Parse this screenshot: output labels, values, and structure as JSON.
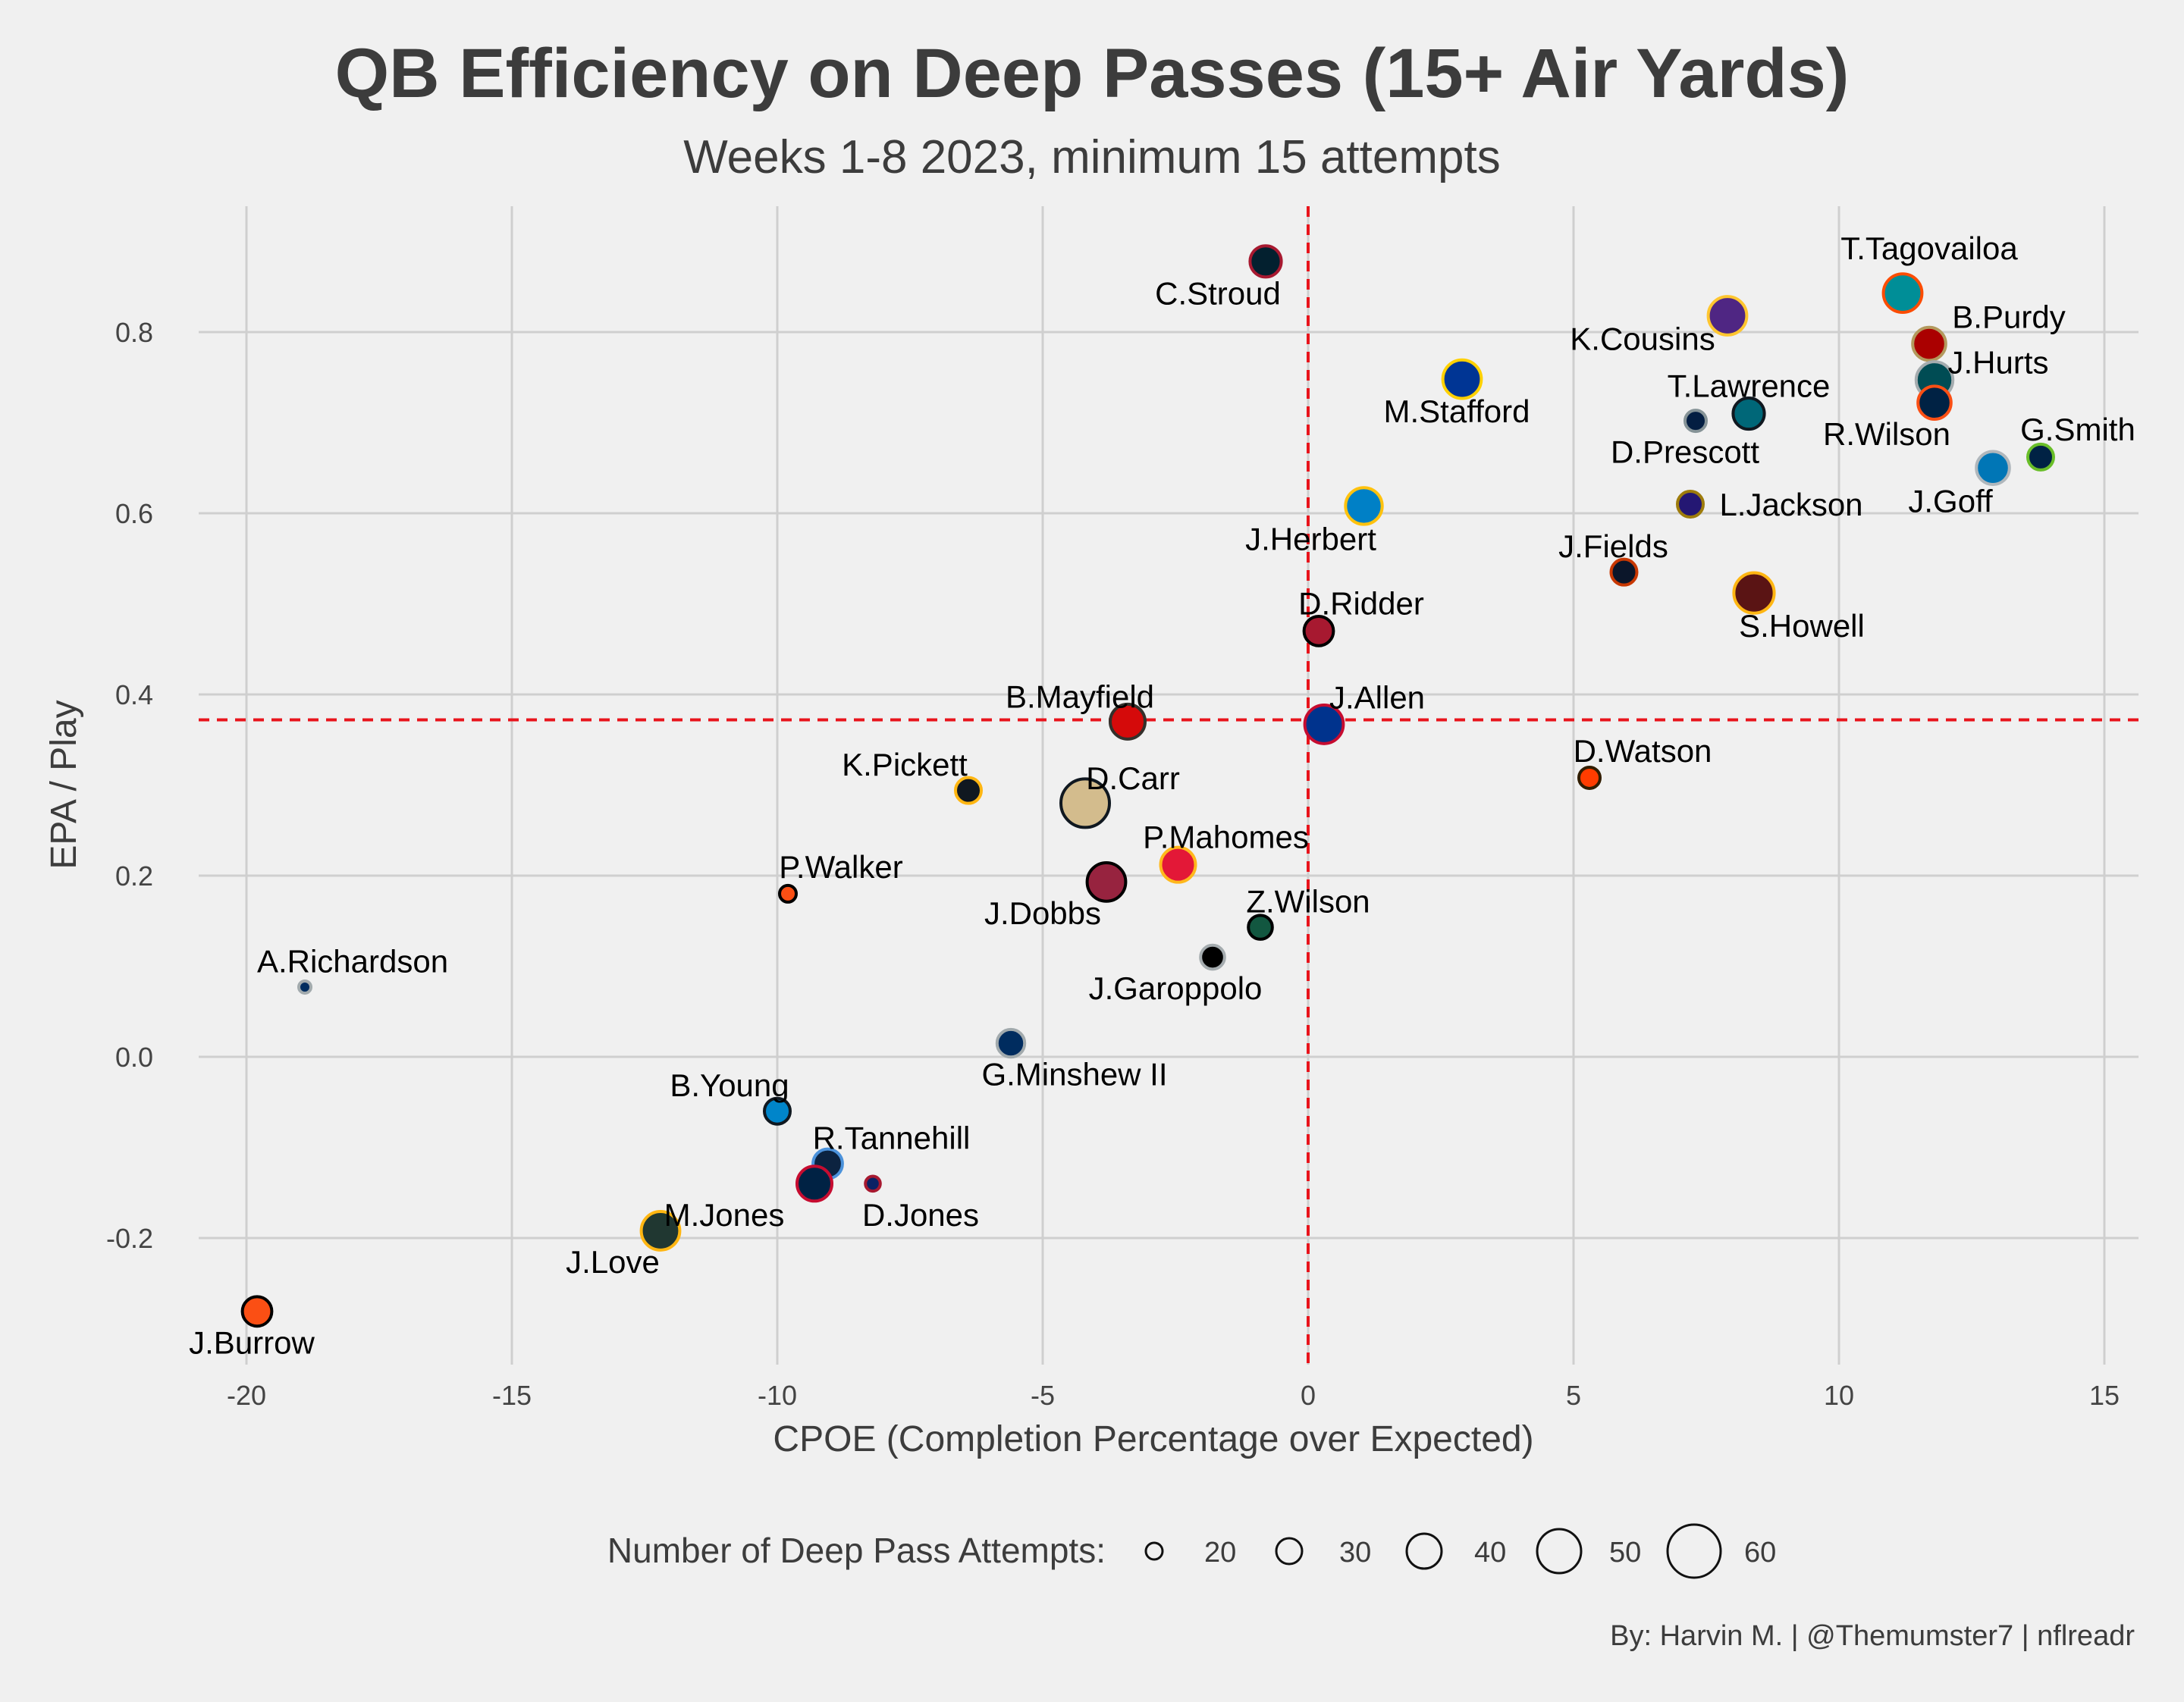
{
  "chart_data": {
    "type": "scatter",
    "title": "QB Efficiency on Deep Passes (15+ Air Yards)",
    "subtitle": "Weeks 1-8 2023, minimum 15 attempts",
    "xlabel": "CPOE (Completion Percentage over Expected)",
    "ylabel": "EPA / Play",
    "caption": "By: Harvin M. | @Themumster7 | nflreadr",
    "xlim": [
      -21.5,
      15.5
    ],
    "ylim": [
      -0.34,
      0.94
    ],
    "xticks": [
      -20,
      -15,
      -10,
      -5,
      0,
      5,
      10,
      15
    ],
    "xtick_labels": [
      "-20",
      "-15",
      "-10",
      "-5",
      "0",
      "5",
      "10",
      "15"
    ],
    "yticks": [
      -0.2,
      0.0,
      0.2,
      0.4,
      0.6,
      0.8
    ],
    "ytick_labels": [
      "-0.2",
      "0.0",
      "0.2",
      "0.4",
      "0.6",
      "0.8"
    ],
    "grid": true,
    "reference_lines": {
      "x": 0.0,
      "y": 0.372,
      "color": "#e8141c",
      "style": "dashed"
    },
    "legend": {
      "title": "Number of Deep Pass Attempts:",
      "position": "bottom",
      "sizes": [
        20,
        30,
        40,
        50,
        60
      ],
      "labels": [
        "20",
        "30",
        "40",
        "50",
        "60"
      ]
    },
    "points": [
      {
        "label": "C.Stroud",
        "x": -0.8,
        "y": 0.878,
        "attempts": 36,
        "fill": "#03202f",
        "stroke": "#a71930",
        "label_dx": -0.9,
        "label_dy": -0.035
      },
      {
        "label": "T.Tagovailoa",
        "x": 11.2,
        "y": 0.843,
        "attempts": 44,
        "fill": "#008e97",
        "stroke": "#fc4c02",
        "label_dx": 0.5,
        "label_dy": 0.05
      },
      {
        "label": "K.Cousins",
        "x": 7.9,
        "y": 0.818,
        "attempts": 44,
        "fill": "#4f2683",
        "stroke": "#ffc62f",
        "label_dx": -1.6,
        "label_dy": -0.025
      },
      {
        "label": "B.Purdy",
        "x": 11.7,
        "y": 0.787,
        "attempts": 38,
        "fill": "#aa0000",
        "stroke": "#b3995d",
        "label_dx": 1.5,
        "label_dy": 0.03
      },
      {
        "label": "M.Stafford",
        "x": 2.9,
        "y": 0.748,
        "attempts": 44,
        "fill": "#003594",
        "stroke": "#ffd100",
        "label_dx": -0.1,
        "label_dy": -0.035
      },
      {
        "label": "J.Hurts",
        "x": 11.8,
        "y": 0.747,
        "attempts": 42,
        "fill": "#004c54",
        "stroke": "#a5acaf",
        "label_dx": 1.2,
        "label_dy": 0.02
      },
      {
        "label": "R.Wilson",
        "x": 11.8,
        "y": 0.722,
        "attempts": 38,
        "fill": "#002244",
        "stroke": "#fb4f14",
        "label_dx": -0.9,
        "label_dy": -0.034
      },
      {
        "label": "T.Lawrence",
        "x": 8.3,
        "y": 0.71,
        "attempts": 36,
        "fill": "#006778",
        "stroke": "#101820",
        "label_dx": 0.0,
        "label_dy": 0.031
      },
      {
        "label": "D.Prescott",
        "x": 7.3,
        "y": 0.702,
        "attempts": 25,
        "fill": "#041e42",
        "stroke": "#869397",
        "label_dx": -0.2,
        "label_dy": -0.034
      },
      {
        "label": "G.Smith",
        "x": 13.8,
        "y": 0.662,
        "attempts": 30,
        "fill": "#002244",
        "stroke": "#69be28",
        "label_dx": 0.7,
        "label_dy": 0.031
      },
      {
        "label": "J.Goff",
        "x": 12.9,
        "y": 0.65,
        "attempts": 38,
        "fill": "#0076b6",
        "stroke": "#b0b7bc",
        "label_dx": -0.8,
        "label_dy": -0.036
      },
      {
        "label": "J.Herbert",
        "x": 1.05,
        "y": 0.608,
        "attempts": 42,
        "fill": "#0080c6",
        "stroke": "#ffc20e",
        "label_dx": -1.0,
        "label_dy": -0.036
      },
      {
        "label": "L.Jackson",
        "x": 7.2,
        "y": 0.61,
        "attempts": 30,
        "fill": "#241773",
        "stroke": "#9e7c0c",
        "label_dx": 1.9,
        "label_dy": 0.0
      },
      {
        "label": "J.Fields",
        "x": 5.95,
        "y": 0.535,
        "attempts": 30,
        "fill": "#0b162a",
        "stroke": "#c83803",
        "label_dx": -0.2,
        "label_dy": 0.029
      },
      {
        "label": "S.Howell",
        "x": 8.4,
        "y": 0.512,
        "attempts": 46,
        "fill": "#5a1414",
        "stroke": "#ffb612",
        "label_dx": 0.9,
        "label_dy": -0.036
      },
      {
        "label": "D.Ridder",
        "x": 0.2,
        "y": 0.47,
        "attempts": 34,
        "fill": "#a71930",
        "stroke": "#000000",
        "label_dx": 0.8,
        "label_dy": 0.031
      },
      {
        "label": "B.Mayfield",
        "x": -3.4,
        "y": 0.37,
        "attempts": 40,
        "fill": "#d50a0a",
        "stroke": "#34302b",
        "label_dx": -0.9,
        "label_dy": 0.028
      },
      {
        "label": "J.Allen",
        "x": 0.3,
        "y": 0.367,
        "attempts": 44,
        "fill": "#00338d",
        "stroke": "#c60c30",
        "label_dx": 1.0,
        "label_dy": 0.03
      },
      {
        "label": "D.Watson",
        "x": 5.3,
        "y": 0.308,
        "attempts": 25,
        "fill": "#ff3c00",
        "stroke": "#311d00",
        "label_dx": 1.0,
        "label_dy": 0.03
      },
      {
        "label": "K.Pickett",
        "x": -6.4,
        "y": 0.294,
        "attempts": 30,
        "fill": "#101820",
        "stroke": "#ffb612",
        "label_dx": -1.2,
        "label_dy": 0.029
      },
      {
        "label": "D.Carr",
        "x": -4.2,
        "y": 0.28,
        "attempts": 55,
        "fill": "#d3bc8d",
        "stroke": "#101820",
        "label_dx": 0.9,
        "label_dy": 0.028
      },
      {
        "label": "P.Mahomes",
        "x": -2.45,
        "y": 0.212,
        "attempts": 40,
        "fill": "#e31837",
        "stroke": "#ffb81c",
        "label_dx": 0.9,
        "label_dy": 0.031
      },
      {
        "label": "J.Dobbs",
        "x": -3.8,
        "y": 0.193,
        "attempts": 44,
        "fill": "#97233f",
        "stroke": "#000000",
        "label_dx": -1.2,
        "label_dy": -0.034
      },
      {
        "label": "P.Walker",
        "x": -9.8,
        "y": 0.18,
        "attempts": 20,
        "fill": "#fb4f14",
        "stroke": "#000000",
        "label_dx": 1.0,
        "label_dy": 0.03
      },
      {
        "label": "Z.Wilson",
        "x": -0.9,
        "y": 0.143,
        "attempts": 28,
        "fill": "#125740",
        "stroke": "#000000",
        "label_dx": 0.9,
        "label_dy": 0.029
      },
      {
        "label": "J.Garoppolo",
        "x": -1.8,
        "y": 0.11,
        "attempts": 28,
        "fill": "#000000",
        "stroke": "#a5acaf",
        "label_dx": -0.7,
        "label_dy": -0.034
      },
      {
        "label": "A.Richardson",
        "x": -18.9,
        "y": 0.077,
        "attempts": 15,
        "fill": "#002c5f",
        "stroke": "#a2aaad",
        "label_dx": 0.9,
        "label_dy": 0.029
      },
      {
        "label": "G.Minshew II",
        "x": -5.6,
        "y": 0.015,
        "attempts": 32,
        "fill": "#002c5f",
        "stroke": "#a2aaad",
        "label_dx": 1.2,
        "label_dy": -0.034
      },
      {
        "label": "B.Young",
        "x": -10.0,
        "y": -0.06,
        "attempts": 30,
        "fill": "#0085ca",
        "stroke": "#101820",
        "label_dx": -0.9,
        "label_dy": 0.029
      },
      {
        "label": "R.Tannehill",
        "x": -9.05,
        "y": -0.118,
        "attempts": 34,
        "fill": "#0c2340",
        "stroke": "#4b92db",
        "label_dx": 1.2,
        "label_dy": 0.029
      },
      {
        "label": "M.Jones",
        "x": -9.3,
        "y": -0.14,
        "attempts": 40,
        "fill": "#002244",
        "stroke": "#c60c30",
        "label_dx": -1.7,
        "label_dy": -0.034
      },
      {
        "label": "D.Jones",
        "x": -8.2,
        "y": -0.14,
        "attempts": 18,
        "fill": "#0b2265",
        "stroke": "#a71930",
        "label_dx": 0.9,
        "label_dy": -0.034
      },
      {
        "label": "J.Love",
        "x": -12.2,
        "y": -0.192,
        "attempts": 44,
        "fill": "#203731",
        "stroke": "#ffb612",
        "label_dx": -0.9,
        "label_dy": -0.034
      },
      {
        "label": "J.Burrow",
        "x": -19.8,
        "y": -0.281,
        "attempts": 34,
        "fill": "#fb4f14",
        "stroke": "#000000",
        "label_dx": -0.1,
        "label_dy": -0.034
      }
    ]
  }
}
